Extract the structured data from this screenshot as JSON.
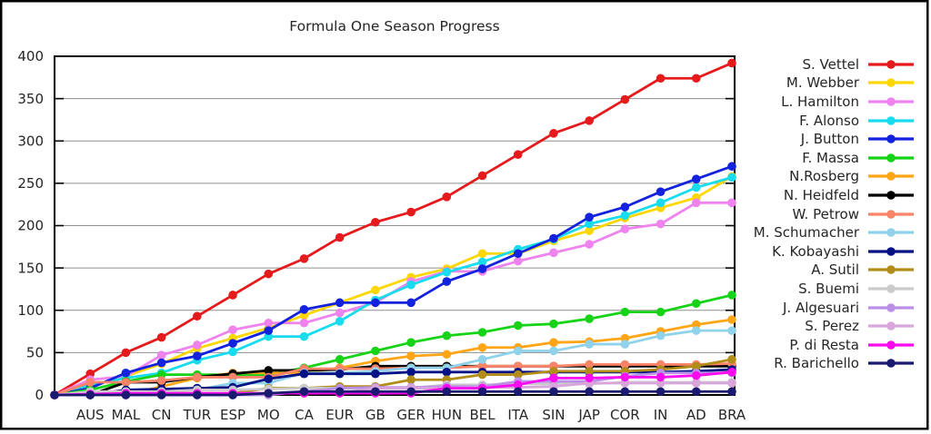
{
  "chart_data": {
    "type": "line",
    "title": "Formula One Season Progress",
    "categories": [
      "AUS",
      "MAL",
      "CN",
      "TUR",
      "ESP",
      "MO",
      "CA",
      "EUR",
      "GB",
      "GER",
      "HUN",
      "BEL",
      "ITA",
      "SIN",
      "JAP",
      "COR",
      "IN",
      "AD",
      "BRA"
    ],
    "xlabel": "",
    "ylabel": "",
    "ylim": [
      0,
      400
    ],
    "ytick_step": 50,
    "grid": "horizontal",
    "legend_position": "right-outside",
    "series_start_at_zero": true,
    "series": [
      {
        "name": "S. Vettel",
        "color": "#e41a1c",
        "values": [
          25,
          50,
          68,
          93,
          118,
          143,
          161,
          186,
          204,
          216,
          234,
          259,
          284,
          309,
          324,
          349,
          374,
          374,
          392
        ]
      },
      {
        "name": "M. Webber",
        "color": "#ffd700",
        "values": [
          10,
          22,
          37,
          55,
          67,
          79,
          94,
          109,
          124,
          139,
          149,
          167,
          167,
          182,
          194,
          209,
          221,
          233,
          258
        ]
      },
      {
        "name": "L. Hamilton",
        "color": "#ee82ee",
        "values": [
          18,
          22,
          47,
          59,
          77,
          85,
          85,
          97,
          109,
          134,
          146,
          146,
          158,
          168,
          178,
          196,
          202,
          227,
          227
        ]
      },
      {
        "name": "F. Alonso",
        "color": "#18dcee",
        "values": [
          12,
          20,
          26,
          41,
          51,
          69,
          69,
          87,
          112,
          130,
          145,
          157,
          172,
          184,
          202,
          212,
          227,
          245,
          257
        ]
      },
      {
        "name": "J. Button",
        "color": "#1322dd",
        "values": [
          8,
          26,
          38,
          46,
          61,
          76,
          101,
          109,
          109,
          109,
          134,
          149,
          167,
          185,
          210,
          222,
          240,
          255,
          270
        ]
      },
      {
        "name": "F. Massa",
        "color": "#17d317",
        "values": [
          6,
          16,
          24,
          24,
          24,
          24,
          32,
          42,
          52,
          62,
          70,
          74,
          82,
          84,
          90,
          98,
          98,
          108,
          118
        ]
      },
      {
        "name": "N.Rosberg",
        "color": "#ffa516",
        "values": [
          0,
          0,
          10,
          20,
          26,
          26,
          26,
          32,
          40,
          46,
          48,
          56,
          56,
          62,
          63,
          67,
          75,
          83,
          89
        ]
      },
      {
        "name": "N. Heidfeld",
        "color": "#000000",
        "values": [
          0,
          15,
          15,
          21,
          25,
          29,
          29,
          30,
          34,
          34,
          34,
          34,
          34,
          34,
          34,
          34,
          34,
          34,
          34
        ]
      },
      {
        "name": "W. Petrow",
        "color": "#fa8368",
        "values": [
          15,
          15,
          17,
          21,
          21,
          21,
          31,
          31,
          31,
          32,
          32,
          34,
          34,
          34,
          36,
          36,
          36,
          36,
          37
        ]
      },
      {
        "name": "M. Schumacher",
        "color": "#8fd2ea",
        "values": [
          0,
          2,
          6,
          6,
          14,
          14,
          26,
          26,
          28,
          32,
          32,
          42,
          52,
          52,
          60,
          60,
          70,
          76,
          76
        ]
      },
      {
        "name": "K. Kobayashi",
        "color": "#041286",
        "values": [
          0,
          6,
          7,
          8,
          9,
          19,
          25,
          25,
          25,
          27,
          27,
          27,
          27,
          27,
          27,
          27,
          27,
          28,
          30
        ]
      },
      {
        "name": "A. Sutil",
        "color": "#b28c18",
        "values": [
          2,
          2,
          2,
          2,
          2,
          8,
          8,
          10,
          10,
          18,
          18,
          24,
          24,
          28,
          28,
          28,
          30,
          34,
          42
        ]
      },
      {
        "name": "S. Buemi",
        "color": "#cbcbcb",
        "values": [
          4,
          4,
          4,
          6,
          6,
          7,
          8,
          8,
          8,
          8,
          12,
          12,
          13,
          13,
          13,
          15,
          15,
          15,
          15
        ]
      },
      {
        "name": "J. Algesuari",
        "color": "#bb8fe8",
        "values": [
          0,
          0,
          0,
          0,
          0,
          0,
          4,
          8,
          9,
          9,
          10,
          10,
          16,
          16,
          16,
          22,
          26,
          26,
          26
        ]
      },
      {
        "name": "S. Perez",
        "color": "#d9a6dc",
        "values": [
          0,
          0,
          0,
          0,
          2,
          2,
          2,
          2,
          8,
          8,
          8,
          9,
          9,
          10,
          14,
          14,
          14,
          14,
          14
        ]
      },
      {
        "name": "P. di Resta",
        "color": "#fb0af0",
        "values": [
          1,
          2,
          2,
          2,
          2,
          2,
          2,
          2,
          2,
          2,
          8,
          8,
          12,
          20,
          20,
          21,
          21,
          23,
          27
        ]
      },
      {
        "name": "R. Barichello",
        "color": "#1a1a70",
        "values": [
          0,
          0,
          0,
          0,
          0,
          2,
          4,
          4,
          4,
          4,
          4,
          4,
          4,
          4,
          4,
          4,
          4,
          4,
          4
        ]
      }
    ]
  }
}
